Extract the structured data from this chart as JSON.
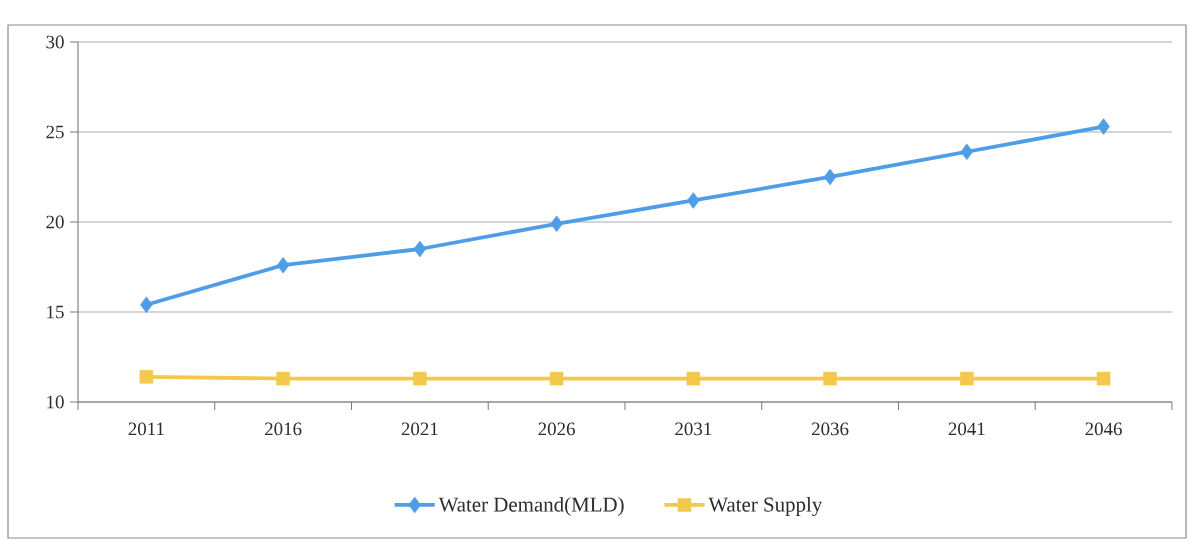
{
  "chart_data": {
    "type": "line",
    "categories": [
      "2011",
      "2016",
      "2021",
      "2026",
      "2031",
      "2036",
      "2041",
      "2046"
    ],
    "series": [
      {
        "name": "Water Demand(MLD)",
        "color": "#4f9de6",
        "marker": "diamond",
        "values": [
          15.4,
          17.6,
          18.5,
          19.9,
          21.2,
          22.5,
          23.9,
          25.3
        ]
      },
      {
        "name": "Water Supply",
        "color": "#f3c84c",
        "marker": "square",
        "values": [
          11.4,
          11.3,
          11.3,
          11.3,
          11.3,
          11.3,
          11.3,
          11.3
        ]
      }
    ],
    "ylim": [
      10,
      30
    ],
    "yticks": [
      10,
      15,
      20,
      25,
      30
    ],
    "grid": "y",
    "legend": "bottom",
    "line_style": "solid"
  }
}
